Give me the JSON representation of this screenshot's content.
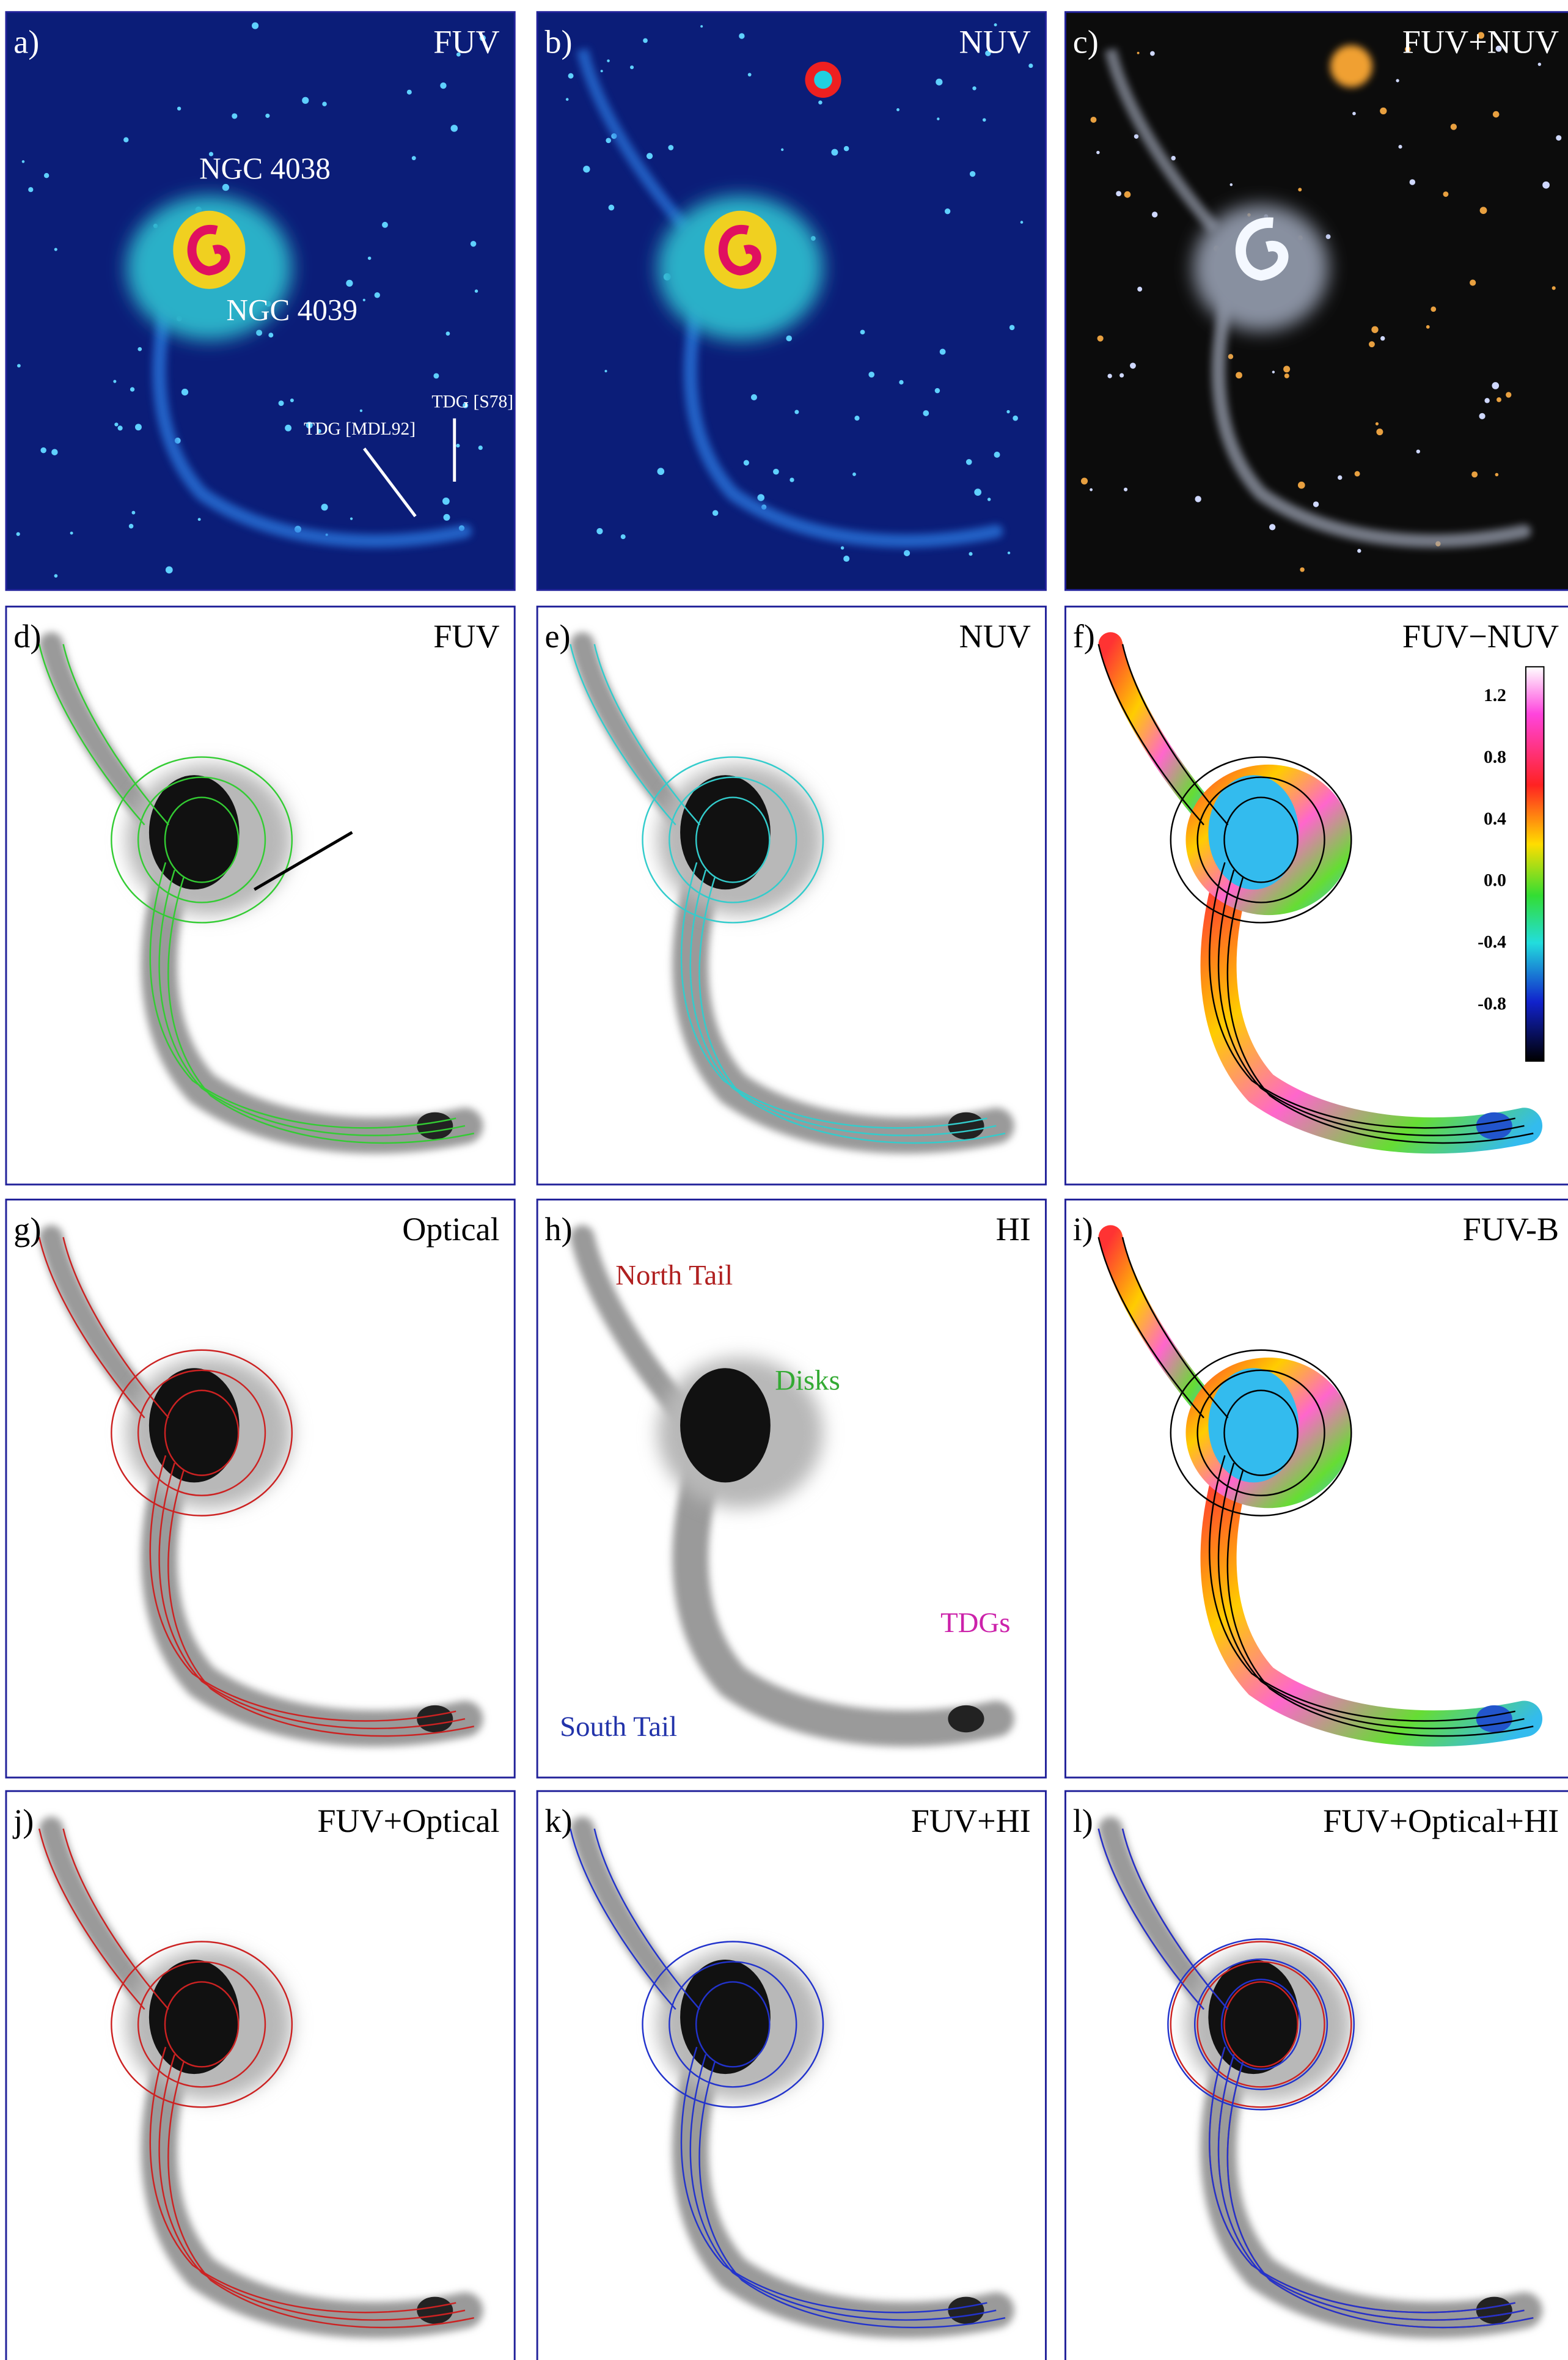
{
  "panels": [
    {
      "label": "a)",
      "title": "FUV",
      "annotations": [
        "NGC 4038",
        "NGC 4039",
        "TDG [MDL92]",
        "TDG [S78]"
      ]
    },
    {
      "label": "b)",
      "title": "NUV"
    },
    {
      "label": "c)",
      "title": "FUV+NUV"
    },
    {
      "label": "d)",
      "title": "FUV"
    },
    {
      "label": "e)",
      "title": "NUV"
    },
    {
      "label": "f)",
      "title": "FUV−NUV",
      "colorbar": [
        "1.2",
        "0.8",
        "0.4",
        "0.0",
        "-0.4",
        "-0.8"
      ]
    },
    {
      "label": "g)",
      "title": "Optical"
    },
    {
      "label": "h)",
      "title": "HI",
      "annotations": [
        "North Tail",
        "Disks",
        "TDGs",
        "South Tail"
      ]
    },
    {
      "label": "i)",
      "title": "FUV-B"
    },
    {
      "label": "j)",
      "title": "FUV+Optical"
    },
    {
      "label": "k)",
      "title": "FUV+HI"
    },
    {
      "label": "l)",
      "title": "FUV+Optical+HI"
    }
  ]
}
